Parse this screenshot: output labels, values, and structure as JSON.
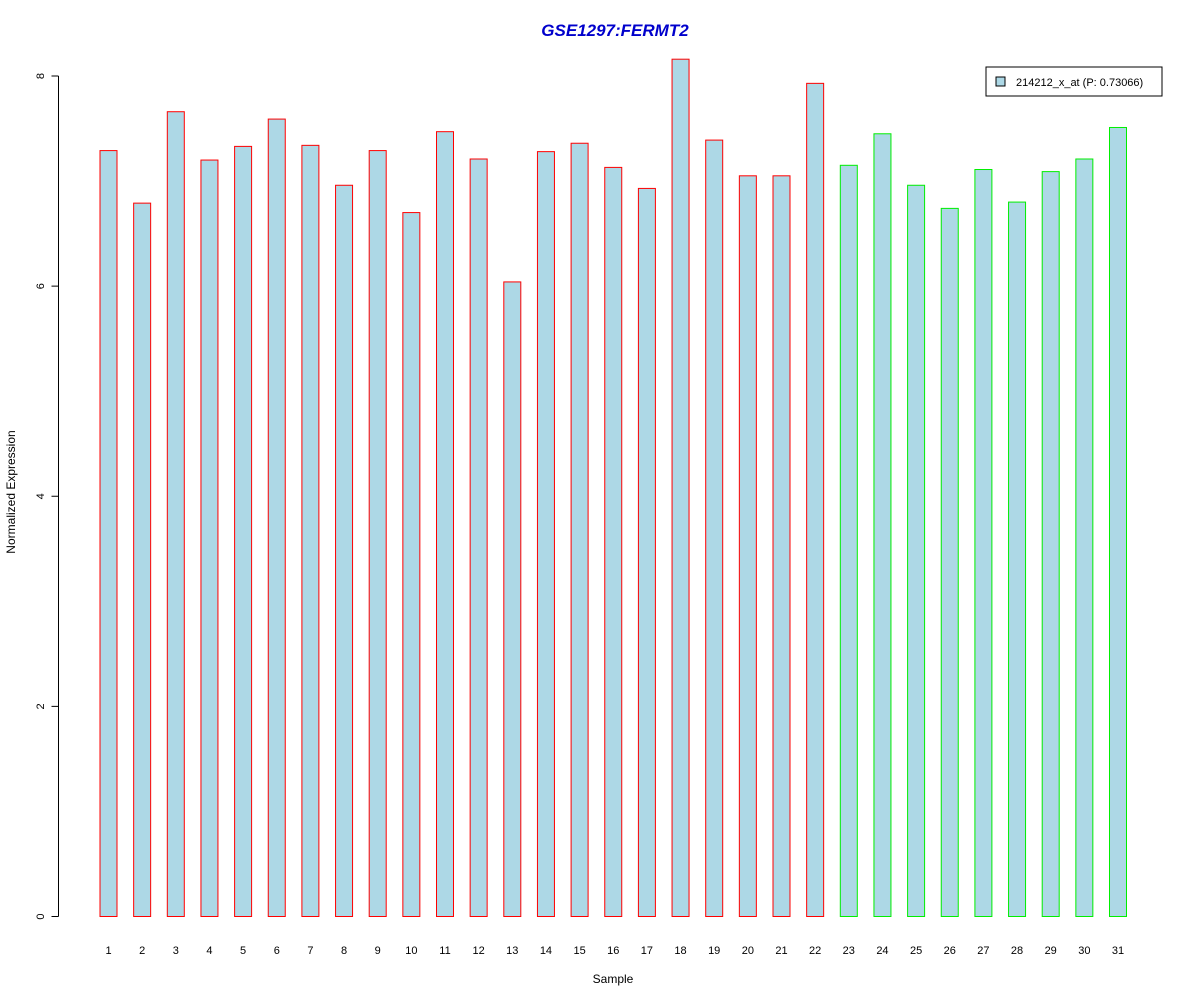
{
  "colors": {
    "title": "#0000cc",
    "bar_fill": "#add8e6",
    "group_a_border": "#ff0000",
    "group_b_border": "#00ee00",
    "axis": "#000000"
  },
  "chart_data": {
    "type": "bar",
    "title": "GSE1297:FERMT2",
    "xlabel": "Sample",
    "ylabel": "Normalized Expression",
    "ylim": [
      0,
      8.15
    ],
    "yticks": [
      0,
      2,
      4,
      6,
      8
    ],
    "grid": false,
    "legend": {
      "placement": "top-right",
      "entries": [
        {
          "label": "214212_x_at (P: 0.73066)"
        }
      ]
    },
    "categories": [
      "1",
      "2",
      "3",
      "4",
      "5",
      "6",
      "7",
      "8",
      "9",
      "10",
      "11",
      "12",
      "13",
      "14",
      "15",
      "16",
      "17",
      "18",
      "19",
      "20",
      "21",
      "22",
      "23",
      "24",
      "25",
      "26",
      "27",
      "28",
      "29",
      "30",
      "31"
    ],
    "values": [
      7.29,
      6.79,
      7.66,
      7.2,
      7.33,
      7.59,
      7.34,
      6.96,
      7.29,
      6.7,
      7.47,
      7.21,
      6.04,
      7.28,
      7.36,
      7.13,
      6.93,
      8.16,
      7.39,
      7.05,
      7.05,
      7.93,
      7.15,
      7.45,
      6.96,
      6.74,
      7.11,
      6.8,
      7.09,
      7.21,
      7.51
    ],
    "groups": [
      "a",
      "a",
      "a",
      "a",
      "a",
      "a",
      "a",
      "a",
      "a",
      "a",
      "a",
      "a",
      "a",
      "a",
      "a",
      "a",
      "a",
      "a",
      "a",
      "a",
      "a",
      "a",
      "b",
      "b",
      "b",
      "b",
      "b",
      "b",
      "b",
      "b",
      "b"
    ]
  }
}
